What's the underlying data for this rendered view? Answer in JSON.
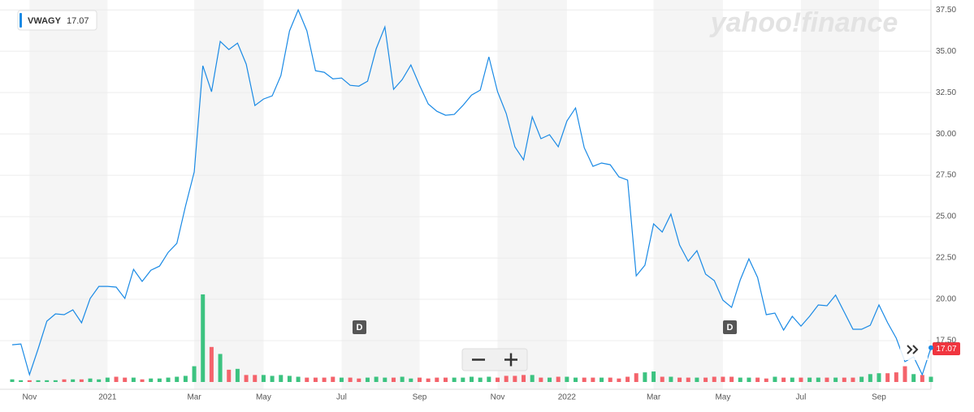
{
  "chart_data": {
    "type": "line",
    "ticker": "VWAGY",
    "last_price": "17.07",
    "watermark": "yahoo!finance",
    "dividends": [
      "D",
      "D"
    ],
    "categories": [
      null,
      null,
      "Nov",
      null,
      null,
      null,
      null,
      null,
      null,
      null,
      null,
      "2021",
      null,
      null,
      null,
      null,
      null,
      null,
      null,
      null,
      null,
      "Mar",
      null,
      null,
      null,
      null,
      null,
      null,
      null,
      "May",
      null,
      null,
      null,
      null,
      null,
      null,
      null,
      null,
      "Jul",
      null,
      null,
      null,
      null,
      null,
      null,
      null,
      null,
      "Sep",
      null,
      null,
      null,
      null,
      null,
      null,
      null,
      null,
      "Nov",
      null,
      null,
      null,
      null,
      null,
      null,
      null,
      "2022",
      null,
      null,
      null,
      null,
      null,
      null,
      null,
      null,
      null,
      "Mar",
      null,
      null,
      null,
      null,
      null,
      null,
      null,
      "May",
      null,
      null,
      null,
      null,
      null,
      null,
      null,
      null,
      "Jul",
      null,
      null,
      null,
      null,
      null,
      null,
      null,
      null,
      "Sep",
      null,
      null,
      null,
      null,
      null,
      null
    ],
    "series": [
      {
        "name": "VWAGY",
        "color": "#1a8ae5",
        "values": [
          17.25,
          17.3,
          15.44,
          17.01,
          18.68,
          19.12,
          19.07,
          19.36,
          18.58,
          20.05,
          20.78,
          20.78,
          20.74,
          20.05,
          21.81,
          21.08,
          21.76,
          22.01,
          22.84,
          23.38,
          25.64,
          27.7,
          34.12,
          32.55,
          35.59,
          35.1,
          35.49,
          34.22,
          31.72,
          32.11,
          32.3,
          33.53,
          36.23,
          37.5,
          36.23,
          33.82,
          33.73,
          33.33,
          33.38,
          32.94,
          32.89,
          33.19,
          35.15,
          36.47,
          32.7,
          33.28,
          34.17,
          32.94,
          31.81,
          31.37,
          31.13,
          31.18,
          31.72,
          32.35,
          32.65,
          34.66,
          32.55,
          31.23,
          29.22,
          28.43,
          31.03,
          29.71,
          29.95,
          29.22,
          30.78,
          31.57,
          29.17,
          28.04,
          28.24,
          28.14,
          27.4,
          27.21,
          21.42,
          22.06,
          24.56,
          24.07,
          25.15,
          23.28,
          22.3,
          22.94,
          21.52,
          21.13,
          19.95,
          19.51,
          21.18,
          22.45,
          21.32,
          19.07,
          19.17,
          18.14,
          18.97,
          18.38,
          18.97,
          19.66,
          19.61,
          20.25,
          19.22,
          18.19,
          18.19,
          18.43,
          19.66,
          18.58,
          17.65,
          16.23,
          16.52,
          15.44,
          17.07
        ]
      },
      {
        "name": "Volume",
        "up_color": "#3cc380",
        "down_color": "#f4636b",
        "values": [
          3,
          2,
          2,
          2,
          2,
          2,
          3,
          3,
          3,
          4,
          3,
          5,
          6,
          5,
          5,
          3,
          4,
          4,
          5,
          6,
          7,
          18,
          100,
          40,
          32,
          14,
          15,
          8,
          8,
          8,
          7,
          8,
          7,
          6,
          5,
          5,
          5,
          6,
          5,
          5,
          4,
          5,
          6,
          5,
          5,
          6,
          4,
          5,
          4,
          5,
          5,
          5,
          5,
          6,
          5,
          6,
          5,
          7,
          7,
          8,
          8,
          5,
          5,
          6,
          6,
          5,
          5,
          5,
          5,
          5,
          4,
          6,
          10,
          11,
          12,
          6,
          6,
          5,
          5,
          5,
          5,
          6,
          6,
          6,
          5,
          5,
          5,
          4,
          6,
          5,
          5,
          5,
          5,
          5,
          5,
          5,
          5,
          5,
          6,
          9,
          10,
          10,
          11,
          18,
          9,
          8,
          6
        ]
      }
    ],
    "ylim": [
      15,
      38
    ],
    "yticks": [
      {
        "value": 17.5,
        "label": "17.50"
      },
      {
        "value": 20,
        "label": "20.00"
      },
      {
        "value": 22.5,
        "label": "22.50"
      },
      {
        "value": 25,
        "label": "25.00"
      },
      {
        "value": 27.5,
        "label": "27.50"
      },
      {
        "value": 30,
        "label": "30.00"
      },
      {
        "value": 32.5,
        "label": "32.50"
      },
      {
        "value": 35,
        "label": "35.00"
      },
      {
        "value": 37.5,
        "label": "37.50"
      }
    ],
    "grid": true
  }
}
